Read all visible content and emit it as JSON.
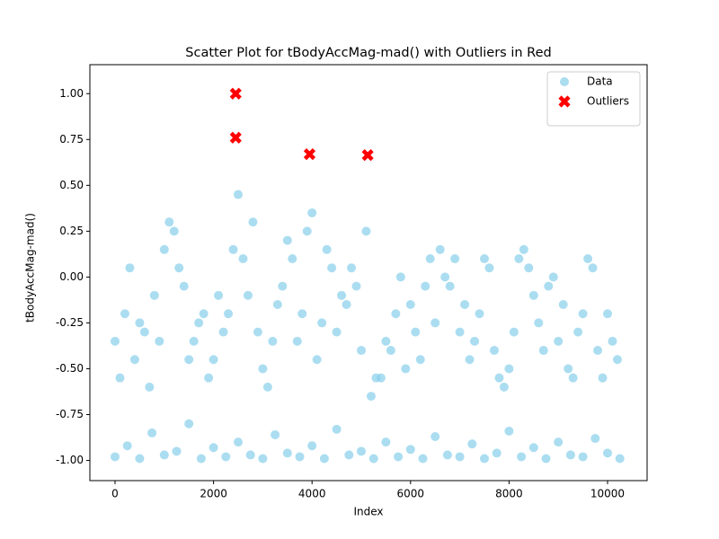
{
  "chart_data": {
    "type": "scatter",
    "title": "Scatter Plot for tBodyAccMag-mad() with Outliers in Red",
    "x_label": "Index",
    "y_label": "tBodyAccMag-mad()",
    "xlim": [
      -511,
      10803
    ],
    "ylim": [
      -1.11,
      1.158
    ],
    "xticks": [
      0,
      2000,
      4000,
      6000,
      8000,
      10000
    ],
    "yticks": [
      {
        "value": -1,
        "label": "-1.00"
      },
      -0.75,
      {
        "value": -0.5,
        "label": "-0.50"
      },
      -0.25,
      {
        "value": 0,
        "label": "0.00"
      },
      0.25,
      {
        "value": 0.5,
        "label": "0.50"
      },
      0.75,
      {
        "value": 1,
        "label": "1.00"
      }
    ],
    "legend_position": "upper right",
    "series": [
      {
        "name": "Data",
        "color": "#87ceeb",
        "marker": "circle",
        "x": [
          0,
          200,
          400,
          600,
          800,
          1000,
          1200,
          1400,
          1600,
          1800,
          2000,
          2200,
          2400,
          2600,
          2800,
          3000,
          3200,
          3400,
          3600,
          3800,
          4000,
          4200,
          4400,
          4600,
          4800,
          5000,
          5200,
          5400,
          5600,
          5800,
          6000,
          6200,
          6400,
          6600,
          6800,
          7000,
          7200,
          7400,
          7600,
          7800,
          8000,
          8200,
          8400,
          8600,
          8800,
          9000,
          9200,
          9400,
          9600,
          9800,
          10000,
          10200,
          100,
          300,
          500,
          700,
          900,
          1100,
          1300,
          1500,
          1700,
          1900,
          2100,
          2300,
          2500,
          2700,
          2900,
          3100,
          3300,
          3500,
          3700,
          3900,
          4100,
          4300,
          4500,
          4700,
          4900,
          5100,
          5300,
          5500,
          5700,
          5900,
          6100,
          6300,
          6500,
          6700,
          6900,
          7100,
          7300,
          7500,
          7700,
          7900,
          8100,
          8300,
          8500,
          8700,
          8900,
          9100,
          9300,
          9500,
          9700,
          9900,
          10100,
          0,
          250,
          500,
          750,
          1000,
          1250,
          1500,
          1750,
          2000,
          2250,
          2500,
          2750,
          3000,
          3250,
          3500,
          3750,
          4000,
          4250,
          4500,
          4750,
          5000,
          5250,
          5500,
          5750,
          6000,
          6250,
          6500,
          6750,
          7000,
          7250,
          7500,
          7750,
          8000,
          8250,
          8500,
          8750,
          9000,
          9250,
          9500,
          9750,
          10000,
          10250
        ],
        "values": [
          -0.35,
          -0.2,
          -0.45,
          -0.3,
          -0.1,
          0.15,
          0.25,
          -0.05,
          -0.35,
          -0.2,
          -0.45,
          -0.3,
          0.15,
          0.1,
          0.3,
          -0.5,
          -0.35,
          -0.05,
          0.1,
          -0.2,
          0.35,
          -0.25,
          0.05,
          -0.1,
          0.05,
          -0.4,
          -0.65,
          -0.55,
          -0.4,
          0.0,
          -0.15,
          -0.45,
          0.1,
          0.15,
          -0.05,
          -0.3,
          -0.45,
          -0.2,
          0.05,
          -0.55,
          -0.5,
          0.1,
          0.05,
          -0.25,
          -0.05,
          -0.35,
          -0.5,
          -0.3,
          0.1,
          -0.4,
          -0.2,
          -0.45,
          -0.55,
          0.05,
          -0.25,
          -0.6,
          -0.35,
          0.3,
          0.05,
          -0.45,
          -0.25,
          -0.55,
          -0.1,
          -0.2,
          0.45,
          -0.1,
          -0.3,
          -0.6,
          -0.15,
          0.2,
          -0.35,
          0.25,
          -0.45,
          0.15,
          -0.3,
          -0.15,
          -0.05,
          0.25,
          -0.55,
          -0.35,
          -0.2,
          -0.5,
          -0.3,
          -0.05,
          -0.25,
          0.0,
          0.1,
          -0.15,
          -0.35,
          0.1,
          -0.4,
          -0.6,
          -0.3,
          0.15,
          -0.1,
          -0.4,
          0.0,
          -0.15,
          -0.55,
          -0.2,
          0.05,
          -0.55,
          -0.35,
          -0.98,
          -0.92,
          -0.99,
          -0.85,
          -0.97,
          -0.95,
          -0.8,
          -0.99,
          -0.93,
          -0.98,
          -0.9,
          -0.97,
          -0.99,
          -0.86,
          -0.96,
          -0.98,
          -0.92,
          -0.99,
          -0.83,
          -0.97,
          -0.95,
          -0.99,
          -0.9,
          -0.98,
          -0.94,
          -0.99,
          -0.87,
          -0.97,
          -0.98,
          -0.91,
          -0.99,
          -0.96,
          -0.84,
          -0.98,
          -0.93,
          -0.99,
          -0.9,
          -0.97,
          -0.98,
          -0.88,
          -0.96,
          -0.99
        ]
      },
      {
        "name": "Outliers",
        "color": "#ff0000",
        "marker": "x",
        "x": [
          2450,
          2450,
          3950,
          5130
        ],
        "values": [
          1.0,
          0.76,
          0.67,
          0.665
        ]
      }
    ]
  }
}
